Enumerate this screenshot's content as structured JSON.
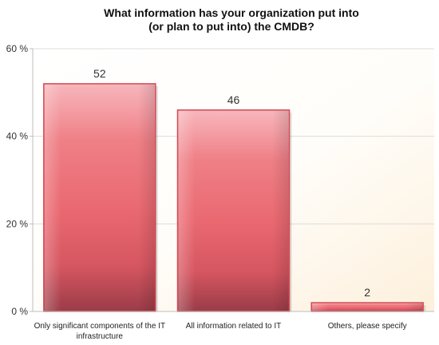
{
  "chart_data": {
    "type": "bar",
    "title_lines": [
      "What information has your organization put into",
      "(or plan to put into) the CMDB?"
    ],
    "categories": [
      [
        "Only significant components of the IT",
        "infrastructure"
      ],
      [
        "All information related to IT"
      ],
      [
        "Others, please specify"
      ]
    ],
    "values": [
      52,
      46,
      2
    ],
    "value_labels": [
      "52",
      "46",
      "2"
    ],
    "yticks": [
      {
        "value": 0,
        "label": "0 %"
      },
      {
        "value": 20,
        "label": "20 %"
      },
      {
        "value": 40,
        "label": "40 %"
      },
      {
        "value": 60,
        "label": "60 %"
      }
    ],
    "ylim": [
      0,
      60
    ],
    "grid": true,
    "colors": {
      "bar_top": "#f7b3b8",
      "bar_mid": "#ec6b73",
      "bar_bottom": "#9e3d48",
      "bar_edge": "#c9464f",
      "background_fade": "#fdf1df",
      "grid": "#d8d8d8"
    }
  }
}
